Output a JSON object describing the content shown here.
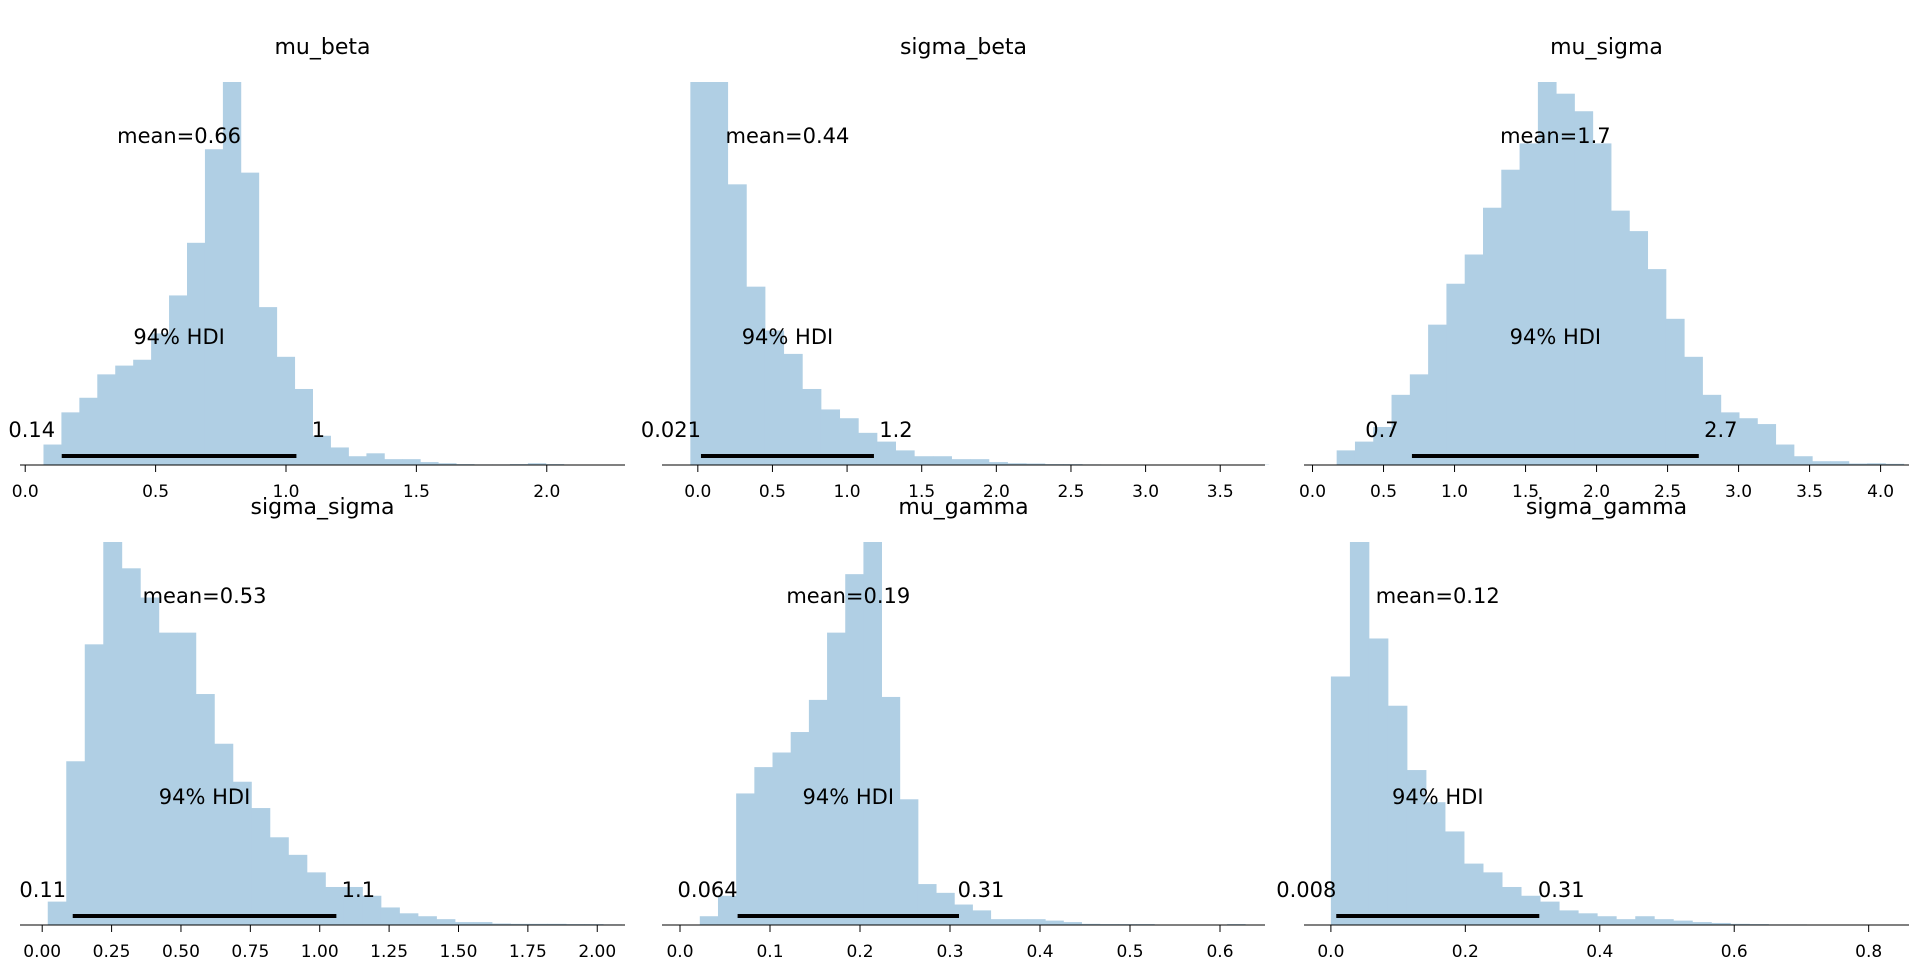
{
  "figure": {
    "hdi_label": "94% HDI",
    "bar_color": "#b0cfe4",
    "hdi_line_color": "#000000"
  },
  "chart_data": [
    {
      "type": "bar",
      "title": "mu_beta",
      "mean_label": "mean=0.66",
      "hdi_low_label": "0.14",
      "hdi_high_label": "1",
      "hdi": [
        0.14,
        1.04
      ],
      "xlim": [
        -0.02,
        2.3
      ],
      "xticks": [
        0.0,
        0.5,
        1.0,
        1.5,
        2.0
      ],
      "xtick_labels": [
        "0.0",
        "0.5",
        "1.0",
        "1.5",
        "2.0"
      ],
      "bin_start": 0.07,
      "bin_width": 0.0688,
      "counts": [
        7,
        18,
        23,
        31,
        34,
        36,
        45,
        58,
        76,
        108,
        131,
        100,
        54,
        37,
        26,
        10,
        6,
        3,
        4,
        2,
        2,
        1,
        0.6,
        0.3,
        0.2,
        0.2,
        0.3,
        0.6,
        0.3
      ]
    },
    {
      "type": "bar",
      "title": "sigma_beta",
      "mean_label": "mean=0.44",
      "hdi_low_label": "0.021",
      "hdi_high_label": "1.2",
      "hdi": [
        0.021,
        1.18
      ],
      "xlim": [
        -0.24,
        3.8
      ],
      "xticks": [
        0.0,
        0.5,
        1.0,
        1.5,
        2.0,
        2.5,
        3.0,
        3.5
      ],
      "xtick_labels": [
        "0.0",
        "0.5",
        "1.0",
        "1.5",
        "2.0",
        "2.5",
        "3.0",
        "3.5"
      ],
      "bin_start": -0.05,
      "bin_width": 0.125,
      "counts": [
        131,
        131,
        96,
        61,
        46,
        38,
        26,
        19,
        16,
        11,
        8,
        5,
        3,
        3,
        2,
        2,
        1,
        0.6,
        0.5,
        0.3,
        0.3,
        0.2,
        0.15,
        0.15,
        0.1,
        0.1,
        0.1,
        0.1,
        0.1,
        0.1,
        0.1
      ]
    },
    {
      "type": "bar",
      "title": "mu_sigma",
      "mean_label": "mean=1.7",
      "hdi_low_label": "0.7",
      "hdi_high_label": "2.7",
      "hdi": [
        0.7,
        2.72
      ],
      "xlim": [
        -0.06,
        4.2
      ],
      "xticks": [
        0.0,
        0.5,
        1.0,
        1.5,
        2.0,
        2.5,
        3.0,
        3.5,
        4.0
      ],
      "xtick_labels": [
        "0.0",
        "0.5",
        "1.0",
        "1.5",
        "2.0",
        "2.5",
        "3.0",
        "3.5",
        "4.0"
      ],
      "bin_start": 0.17,
      "bin_width": 0.1288,
      "counts": [
        5,
        8,
        13,
        24,
        31,
        48,
        62,
        72,
        88,
        101,
        110,
        131,
        127,
        121,
        110,
        87,
        80,
        67,
        50,
        37,
        24,
        18,
        16,
        14,
        7,
        3,
        1.3,
        1.3,
        0.5,
        0.6,
        0.4
      ]
    },
    {
      "type": "bar",
      "title": "sigma_sigma",
      "mean_label": "mean=0.53",
      "hdi_low_label": "0.11",
      "hdi_high_label": "1.1",
      "hdi": [
        0.11,
        1.06
      ],
      "xlim": [
        -0.08,
        2.1
      ],
      "xticks": [
        0.0,
        0.25,
        0.5,
        0.75,
        1.0,
        1.25,
        1.5,
        1.75,
        2.0
      ],
      "xtick_labels": [
        "0.00",
        "0.25",
        "0.50",
        "0.75",
        "1.00",
        "1.25",
        "1.50",
        "1.75",
        "2.00"
      ],
      "bin_start": 0.02,
      "bin_width": 0.0667,
      "counts": [
        8,
        56,
        96,
        131,
        122,
        112,
        100,
        100,
        79,
        62,
        49,
        40,
        30,
        24,
        18,
        13,
        13,
        10,
        6,
        4,
        3,
        2,
        1,
        1,
        0.5,
        0.4,
        0.4,
        0.4,
        0.3,
        0.3,
        0.2
      ]
    },
    {
      "type": "bar",
      "title": "mu_gamma",
      "mean_label": "mean=0.19",
      "hdi_low_label": "0.064",
      "hdi_high_label": "0.31",
      "hdi": [
        0.064,
        0.31
      ],
      "xlim": [
        -0.02,
        0.65
      ],
      "xticks": [
        0.0,
        0.1,
        0.2,
        0.3,
        0.4,
        0.5,
        0.6
      ],
      "xtick_labels": [
        "0.0",
        "0.1",
        "0.2",
        "0.3",
        "0.4",
        "0.5",
        "0.6"
      ],
      "bin_start": 0.022,
      "bin_width": 0.0202,
      "counts": [
        3,
        10,
        45,
        54,
        59,
        66,
        77,
        100,
        120,
        131,
        78,
        43,
        14,
        11,
        7,
        5,
        2,
        2,
        2,
        1.5,
        1,
        0.4,
        0.3,
        0.3,
        0.3,
        0.1,
        0.1,
        0.1,
        0.1,
        0.3
      ]
    },
    {
      "type": "bar",
      "title": "sigma_gamma",
      "mean_label": "mean=0.12",
      "hdi_low_label": "0.008",
      "hdi_high_label": "0.31",
      "hdi": [
        0.008,
        0.31
      ],
      "xlim": [
        -0.04,
        0.86
      ],
      "xticks": [
        0.0,
        0.2,
        0.4,
        0.6,
        0.8
      ],
      "xtick_labels": [
        "0.0",
        "0.2",
        "0.4",
        "0.6",
        "0.8"
      ],
      "bin_start": 0.0,
      "bin_width": 0.0283,
      "counts": [
        85,
        131,
        98,
        75,
        53,
        42,
        32,
        21,
        18,
        13,
        10,
        8,
        5,
        4,
        3,
        2,
        3,
        2,
        1.5,
        1,
        0.7,
        0.4,
        0.3,
        0.2,
        0.2,
        0.1,
        0.1,
        0.1,
        0.1,
        0.1
      ]
    }
  ]
}
